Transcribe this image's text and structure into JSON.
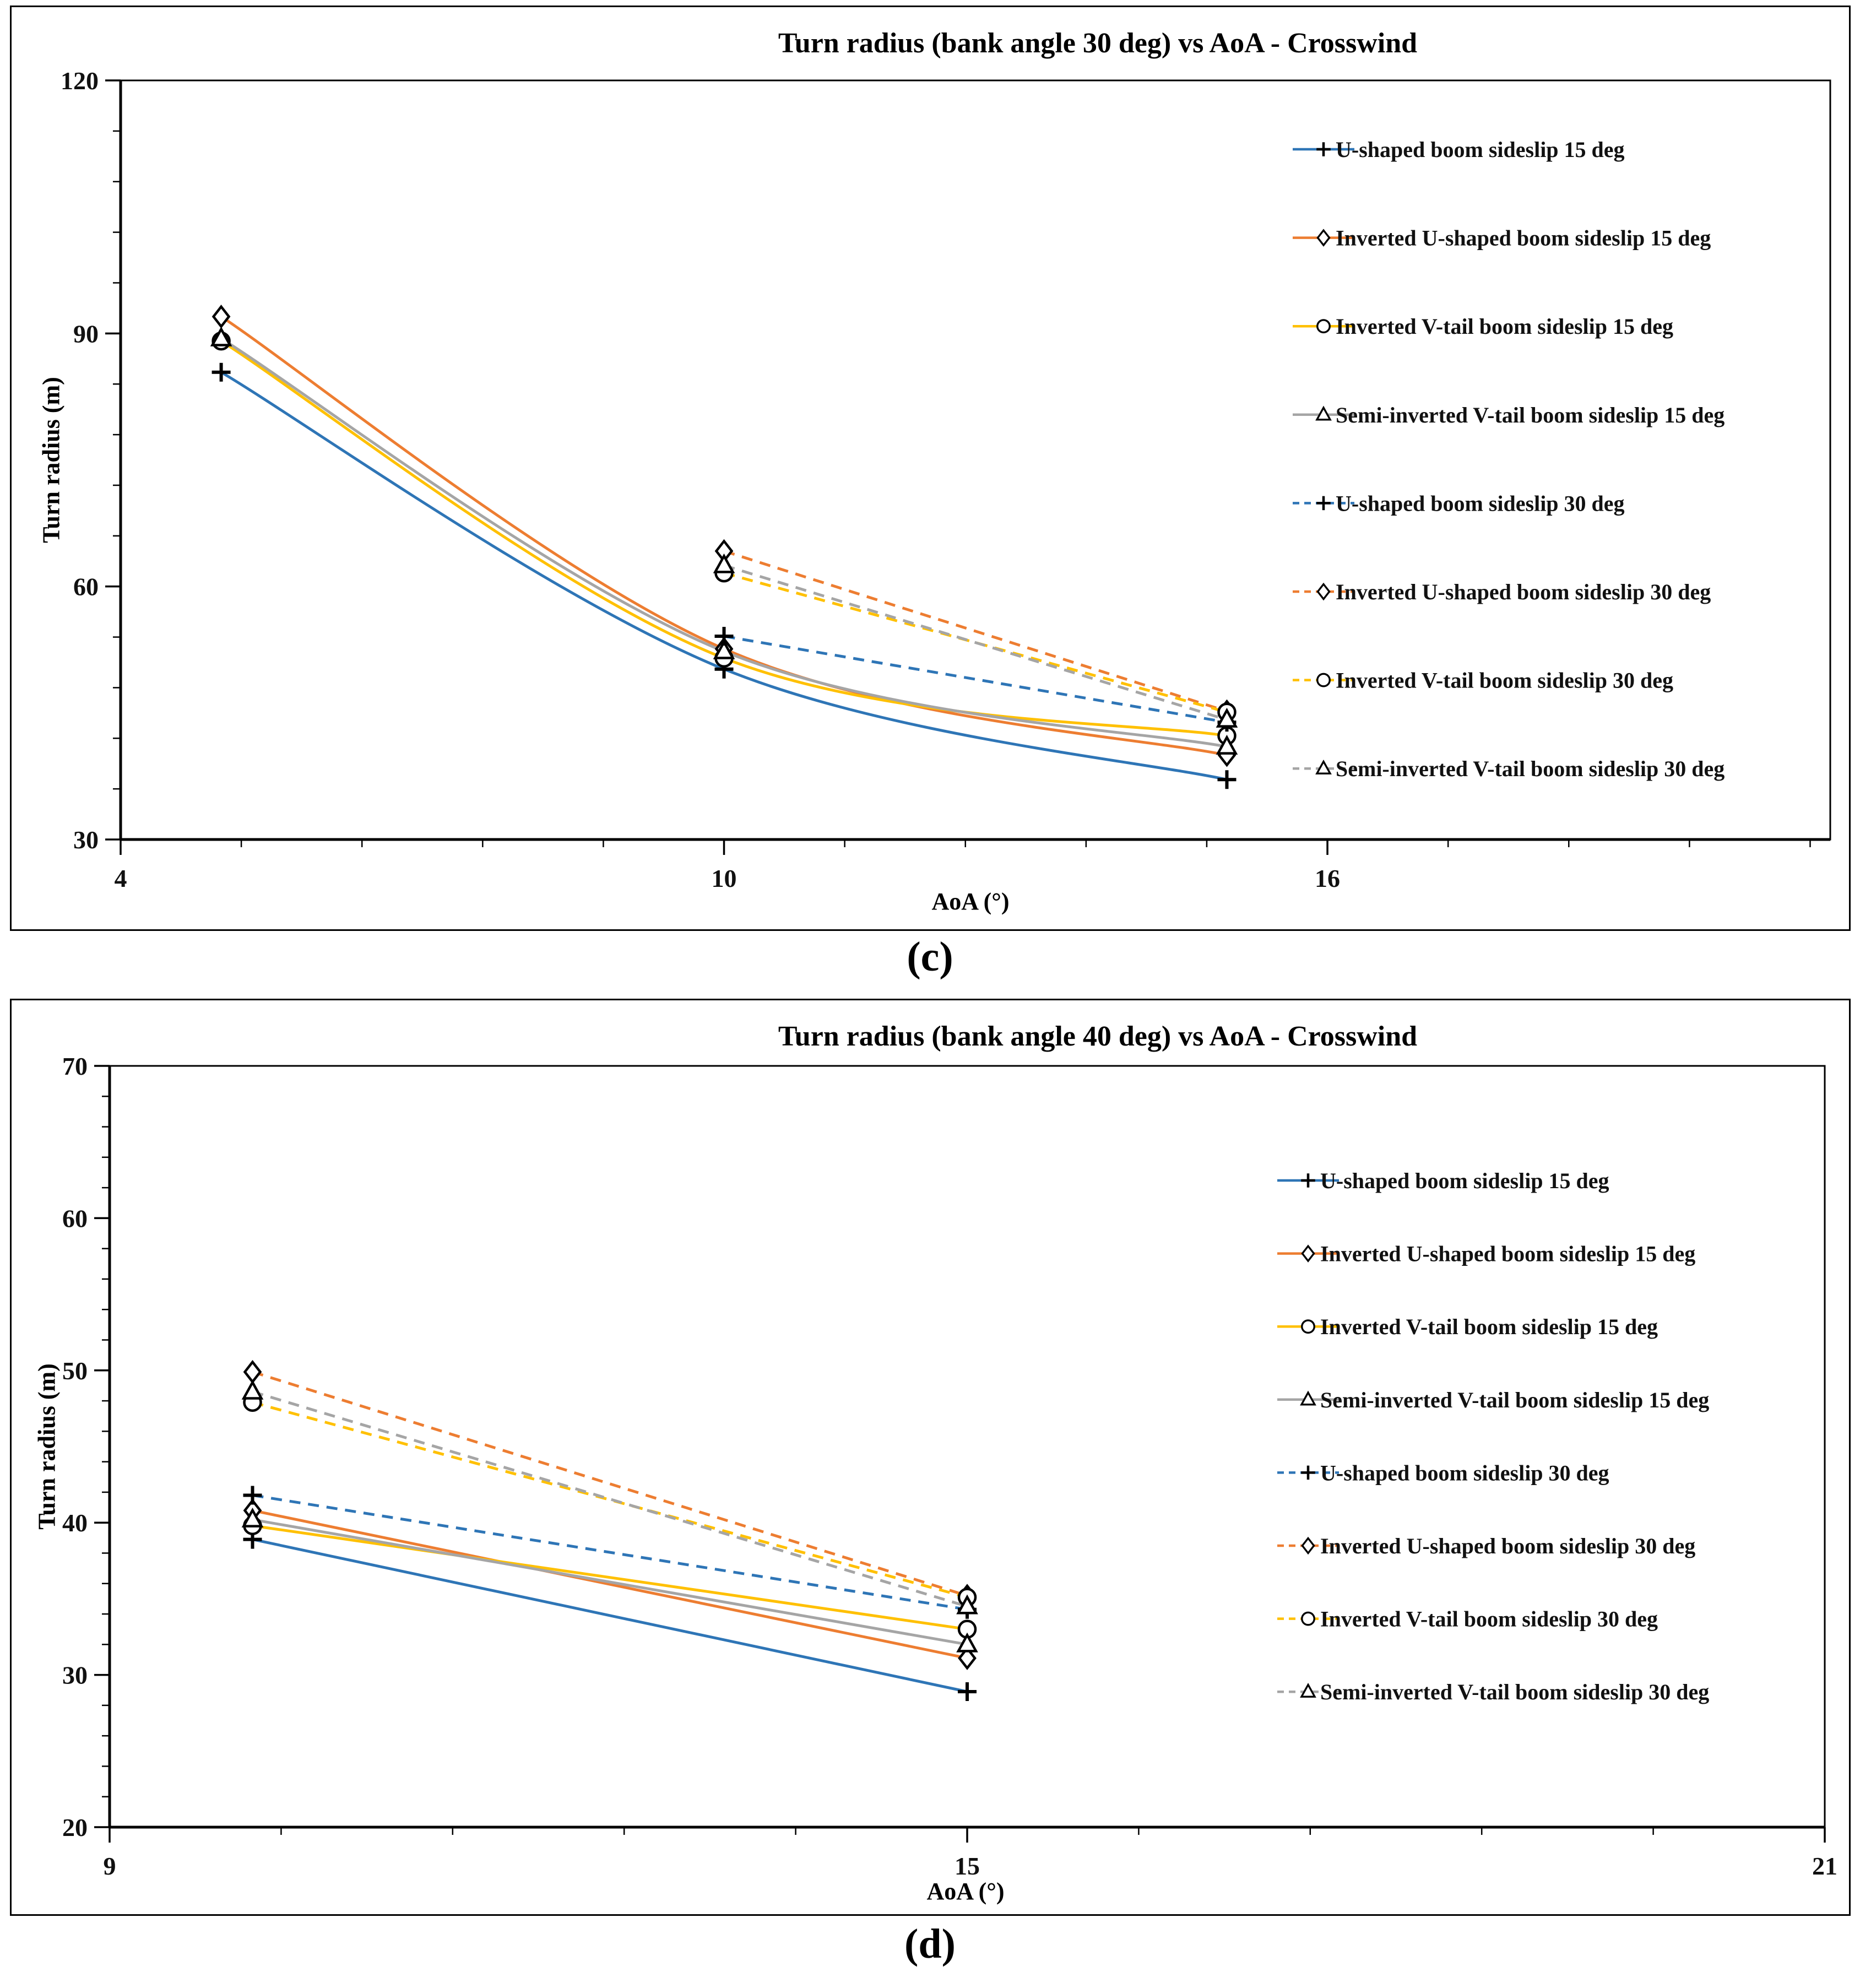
{
  "figure": {
    "background": "#ffffff",
    "panel_border_color": "#000000"
  },
  "chart_data": [
    {
      "type": "line",
      "caption": "(c)",
      "title": "Turn radius (bank angle 30 deg) vs AoA - Crosswind",
      "xlabel": "AoA (°)",
      "ylabel": "Turn radius (m)",
      "xlim": [
        4,
        21
      ],
      "ylim": [
        30,
        120
      ],
      "xticks": [
        4,
        10,
        16
      ],
      "yticks": [
        30,
        60,
        90,
        120
      ],
      "x_minor_step": 1.2,
      "y_minor_step": 6,
      "grid": false,
      "legend_position": "inside-right",
      "series": [
        {
          "name": "U-shaped boom sideslip 15 deg",
          "color": "#2E75B6",
          "line_style": "solid",
          "marker": "plus",
          "points": [
            [
              5,
              85.4
            ],
            [
              10,
              50.2
            ],
            [
              15,
              37.1
            ]
          ]
        },
        {
          "name": "Inverted U-shaped boom sideslip 15 deg",
          "color": "#ED7D31",
          "line_style": "solid",
          "marker": "diamond",
          "points": [
            [
              5,
              92.0
            ],
            [
              10,
              52.6
            ],
            [
              15,
              40.0
            ]
          ]
        },
        {
          "name": "Inverted V-tail boom sideslip 15 deg",
          "color": "#FFC000",
          "line_style": "solid",
          "marker": "circle",
          "points": [
            [
              5,
              89.1
            ],
            [
              10,
              51.5
            ],
            [
              15,
              42.3
            ]
          ]
        },
        {
          "name": "Semi-inverted V-tail boom sideslip 15 deg",
          "color": "#A5A5A5",
          "line_style": "solid",
          "marker": "triangle",
          "points": [
            [
              5,
              89.4
            ],
            [
              10,
              52.3
            ],
            [
              15,
              41.0
            ]
          ]
        },
        {
          "name": "U-shaped boom sideslip 30 deg",
          "color": "#2E75B6",
          "line_style": "dashed",
          "marker": "plus",
          "points": [
            [
              10,
              54.1
            ],
            [
              15,
              43.9
            ]
          ]
        },
        {
          "name": "Inverted U-shaped boom sideslip 30 deg",
          "color": "#ED7D31",
          "line_style": "dashed",
          "marker": "diamond",
          "points": [
            [
              10,
              64.2
            ],
            [
              15,
              45.2
            ]
          ]
        },
        {
          "name": "Inverted V-tail boom sideslip 30 deg",
          "color": "#FFC000",
          "line_style": "dashed",
          "marker": "circle",
          "points": [
            [
              10,
              61.6
            ],
            [
              15,
              45.1
            ]
          ]
        },
        {
          "name": "Semi-inverted V-tail boom sideslip 30 deg",
          "color": "#A5A5A5",
          "line_style": "dashed",
          "marker": "triangle",
          "points": [
            [
              10,
              62.5
            ],
            [
              15,
              44.2
            ]
          ]
        }
      ]
    },
    {
      "type": "line",
      "caption": "(d)",
      "title": "Turn radius (bank angle 40 deg) vs AoA - Crosswind",
      "xlabel": "AoA (°)",
      "ylabel": "Turn radius (m)",
      "xlim": [
        9,
        21
      ],
      "ylim": [
        20,
        70
      ],
      "xticks": [
        9,
        15,
        21
      ],
      "yticks": [
        20,
        30,
        40,
        50,
        60,
        70
      ],
      "x_minor_step": 1.2,
      "y_minor_step": 2,
      "grid": false,
      "legend_position": "inside-right",
      "series": [
        {
          "name": "U-shaped boom sideslip 15 deg",
          "color": "#2E75B6",
          "line_style": "solid",
          "marker": "plus",
          "points": [
            [
              10,
              38.9
            ],
            [
              15,
              28.9
            ]
          ]
        },
        {
          "name": "Inverted U-shaped boom sideslip 15 deg",
          "color": "#ED7D31",
          "line_style": "solid",
          "marker": "diamond",
          "points": [
            [
              10,
              40.8
            ],
            [
              15,
              31.1
            ]
          ]
        },
        {
          "name": "Inverted V-tail boom sideslip 15 deg",
          "color": "#FFC000",
          "line_style": "solid",
          "marker": "circle",
          "points": [
            [
              10,
              39.8
            ],
            [
              15,
              33.0
            ]
          ]
        },
        {
          "name": "Semi-inverted V-tail boom sideslip 15 deg",
          "color": "#A5A5A5",
          "line_style": "solid",
          "marker": "triangle",
          "points": [
            [
              10,
              40.2
            ],
            [
              15,
              32.0
            ]
          ]
        },
        {
          "name": "U-shaped boom sideslip 30 deg",
          "color": "#2E75B6",
          "line_style": "dashed",
          "marker": "plus",
          "points": [
            [
              10,
              41.8
            ],
            [
              15,
              34.3
            ]
          ]
        },
        {
          "name": "Inverted U-shaped boom sideslip 30 deg",
          "color": "#ED7D31",
          "line_style": "dashed",
          "marker": "diamond",
          "points": [
            [
              10,
              49.9
            ],
            [
              15,
              35.2
            ]
          ]
        },
        {
          "name": "Inverted V-tail boom sideslip 30 deg",
          "color": "#FFC000",
          "line_style": "dashed",
          "marker": "circle",
          "points": [
            [
              10,
              47.9
            ],
            [
              15,
              35.1
            ]
          ]
        },
        {
          "name": "Semi-inverted V-tail boom sideslip 30 deg",
          "color": "#A5A5A5",
          "line_style": "dashed",
          "marker": "triangle",
          "points": [
            [
              10,
              48.6
            ],
            [
              15,
              34.5
            ]
          ]
        }
      ]
    }
  ]
}
